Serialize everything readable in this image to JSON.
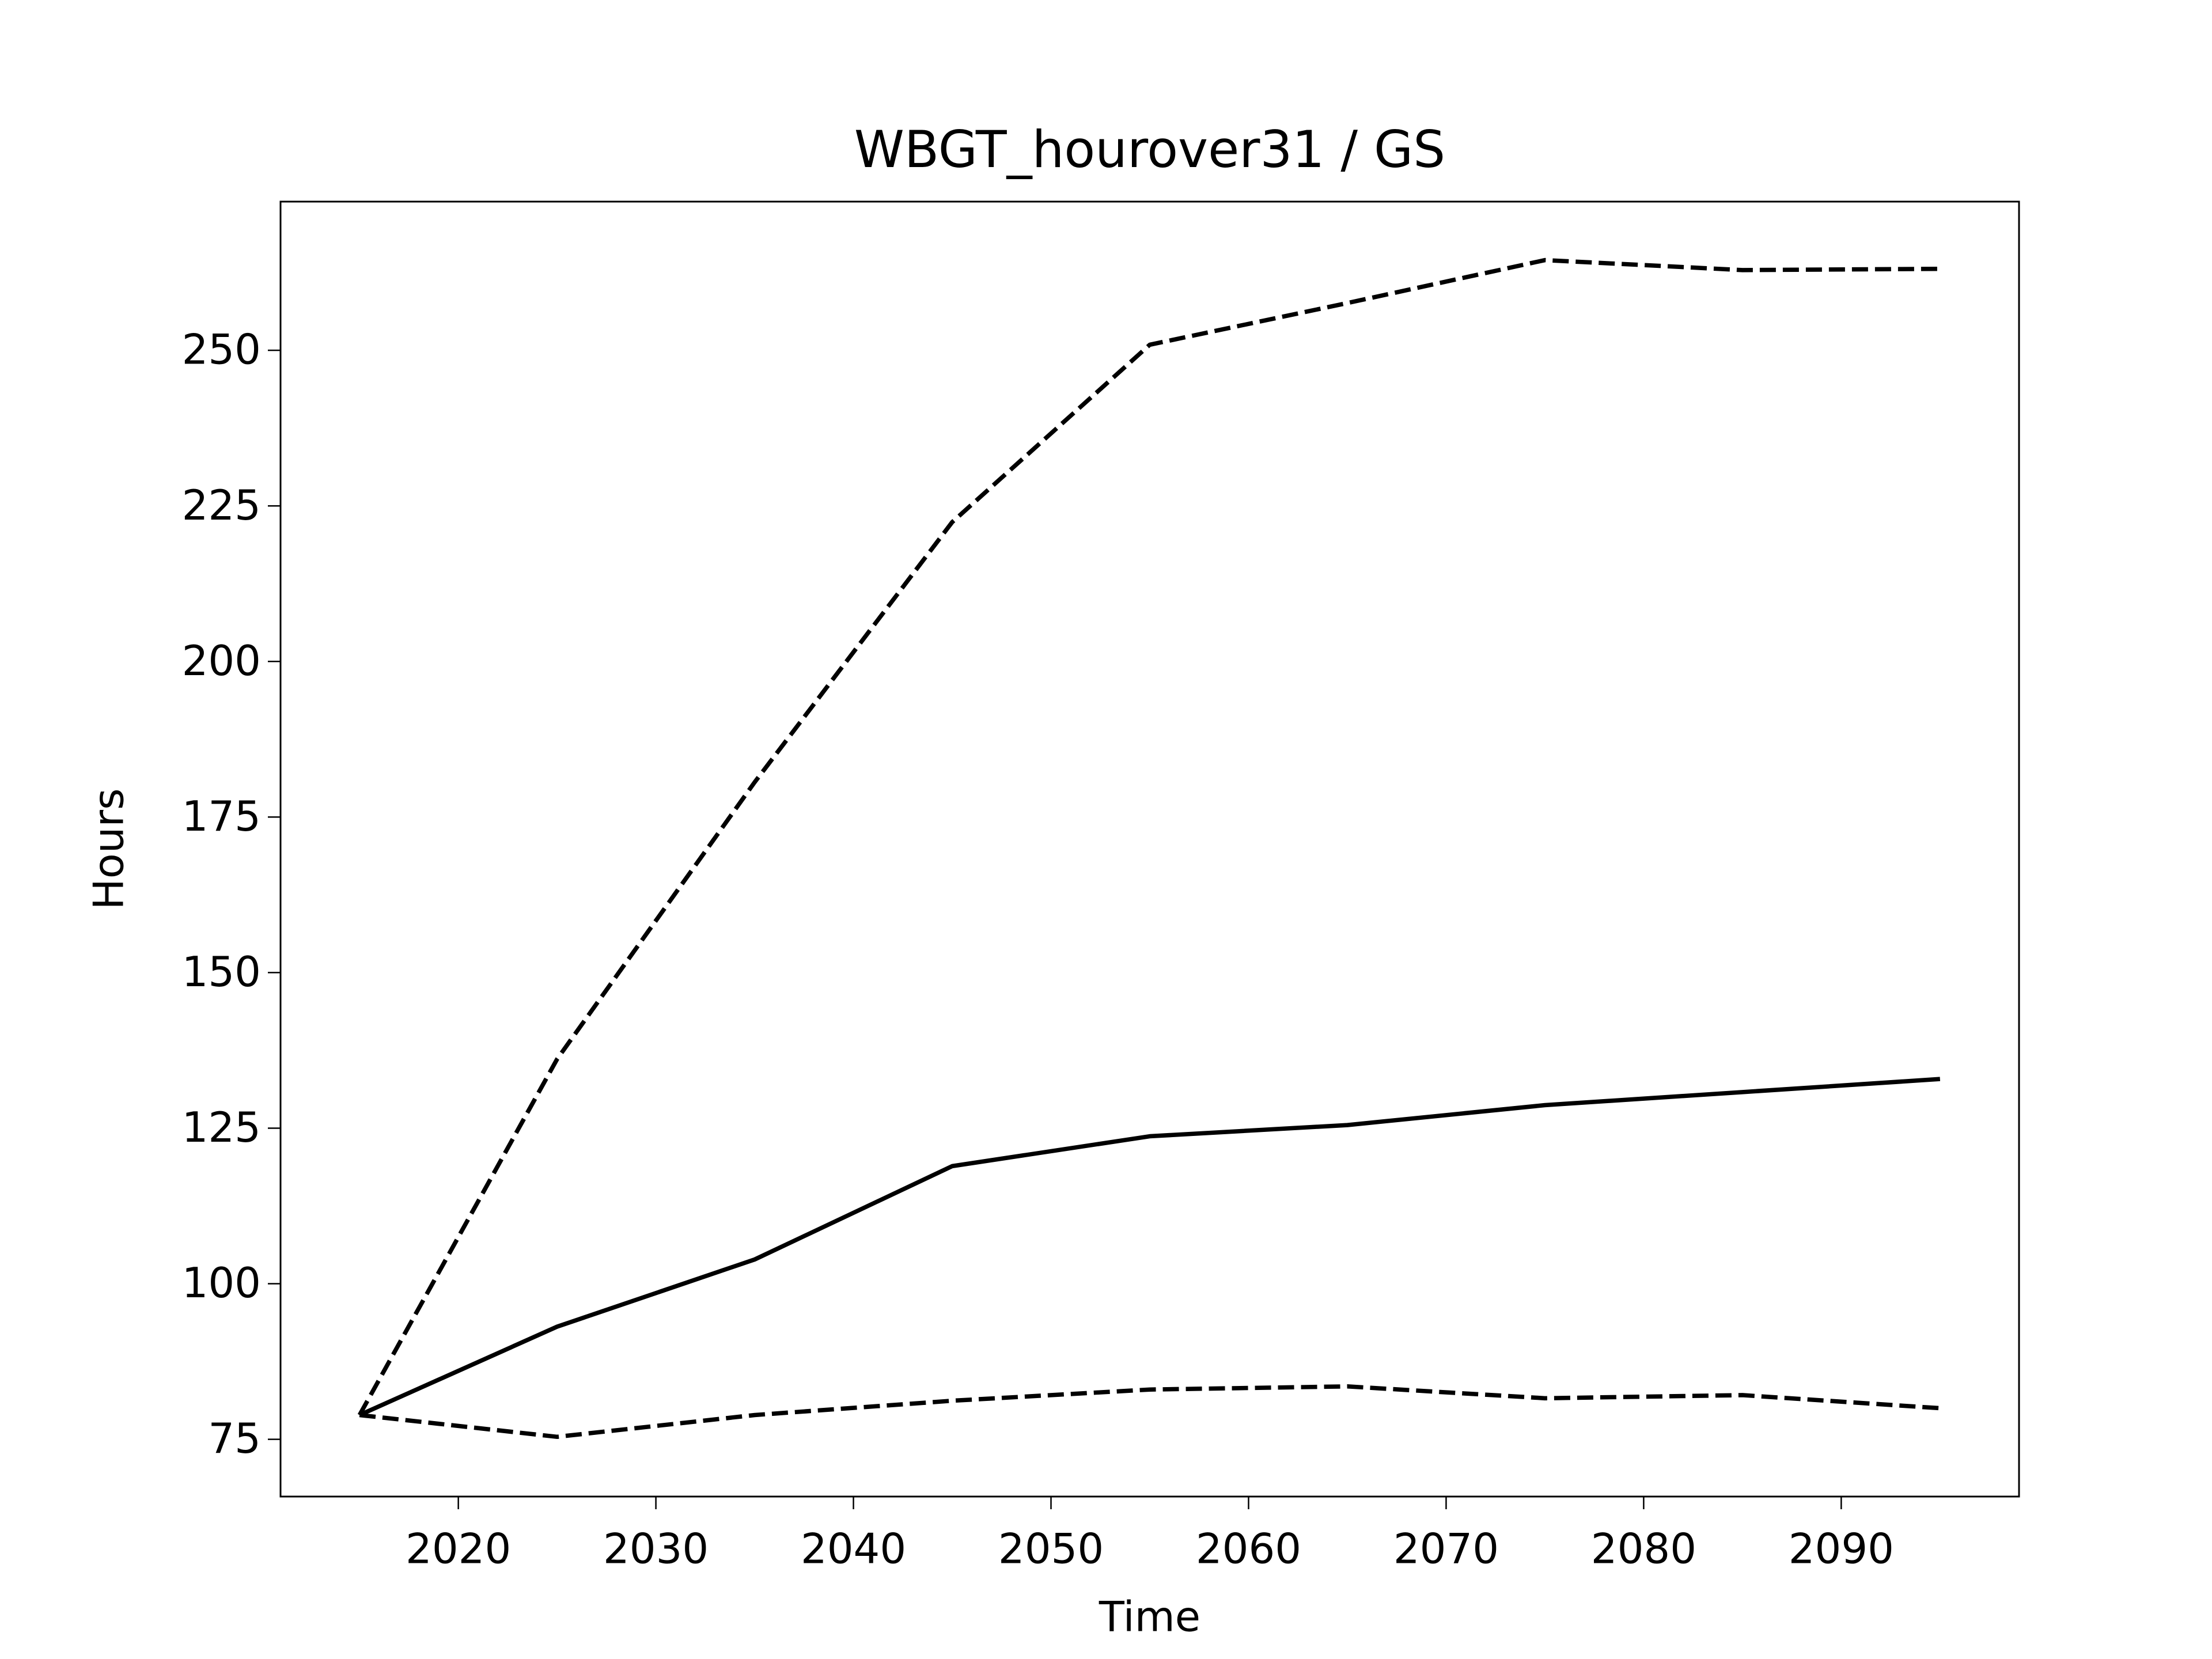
{
  "chart_data": {
    "type": "line",
    "title": "WBGT_hourover31 / GS",
    "x_label": "Time",
    "y_label": "Hours",
    "x": [
      2015,
      2025,
      2035,
      2045,
      2055,
      2065,
      2075,
      2085,
      2095
    ],
    "series": [
      {
        "color": "#000000",
        "dashed": false,
        "values": [
          78.9,
          93.1,
          103.9,
          118.9,
          123.7,
          125.5,
          128.7,
          130.8,
          132.9
        ]
      },
      {
        "color": "#000000",
        "dashed": true,
        "values": [
          78.9,
          136.1,
          180.6,
          222.4,
          250.9,
          257.6,
          264.5,
          262.9,
          263.1
        ]
      },
      {
        "color": "#000000",
        "dashed": true,
        "values": [
          78.9,
          75.4,
          78.9,
          81.2,
          83.0,
          83.5,
          81.6,
          82.1,
          80.0
        ]
      }
    ],
    "xlim": [
      2011,
      2099
    ],
    "xticks": [
      2020,
      2030,
      2040,
      2050,
      2060,
      2070,
      2080,
      2090
    ],
    "ylim": [
      65.8,
      273.9
    ],
    "yticks": [
      75,
      100,
      125,
      150,
      175,
      200,
      225,
      250
    ],
    "grid": false
  }
}
